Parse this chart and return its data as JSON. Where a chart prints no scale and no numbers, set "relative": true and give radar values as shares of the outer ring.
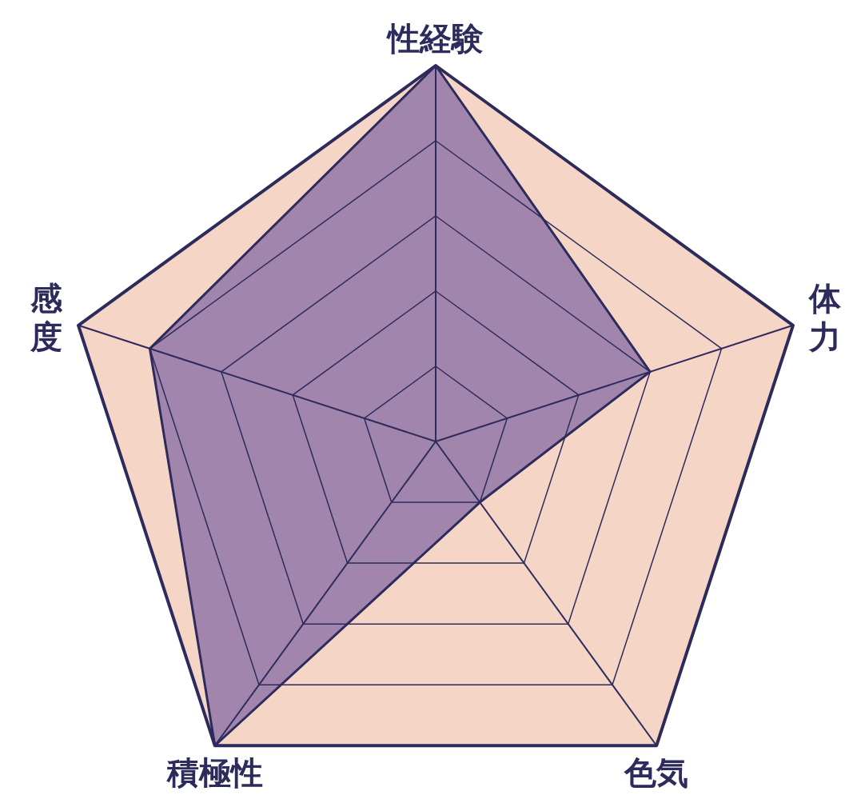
{
  "chart_data": {
    "type": "radar",
    "categories": [
      "性経験",
      "体力",
      "色気",
      "積極性",
      "感度"
    ],
    "relative": true,
    "grid": true,
    "series": [
      {
        "color": "#a285ad",
        "values": [
          1,
          0.6,
          0.2,
          1,
          0.8
        ]
      }
    ]
  }
}
